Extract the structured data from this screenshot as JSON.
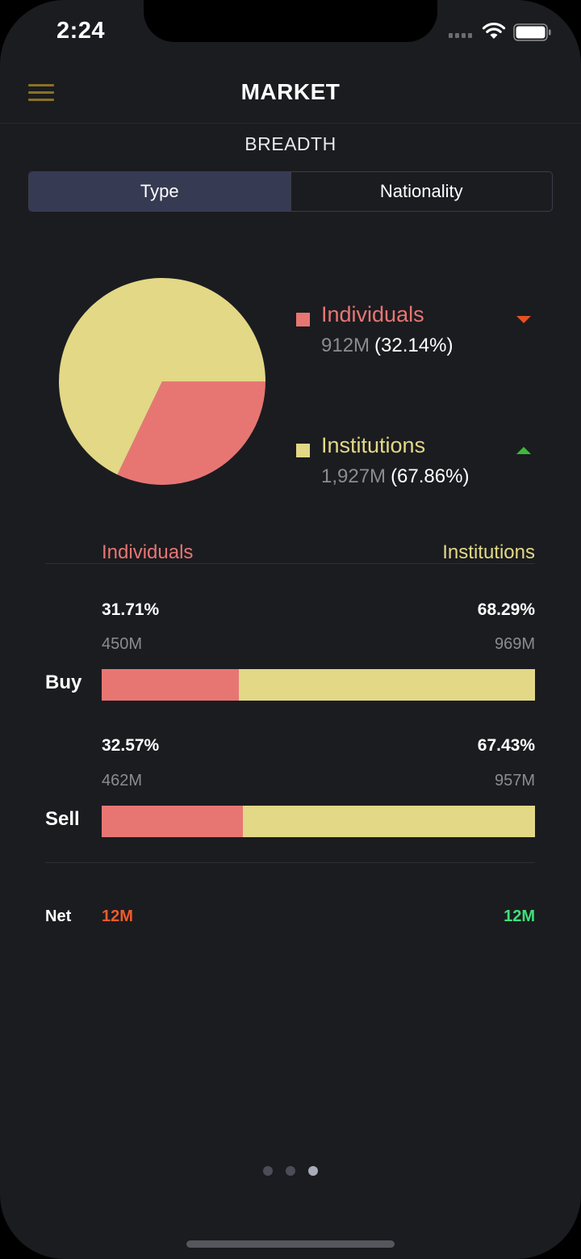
{
  "status_bar": {
    "time": "2:24"
  },
  "header": {
    "title": "MARKET",
    "menu_icon": "hamburger-menu-icon"
  },
  "section": {
    "subtitle": "BREADTH"
  },
  "tabs": [
    {
      "label": "Type",
      "active": true
    },
    {
      "label": "Nationality",
      "active": false
    }
  ],
  "colors": {
    "individuals": "#e77673",
    "institutions": "#e2d886",
    "down": "#e8501f",
    "up": "#3db93a",
    "net_negative": "#f05a2a",
    "net_positive": "#3ee07a",
    "accent_menu": "#8a7125"
  },
  "chart_data": {
    "type": "pie",
    "slices": [
      {
        "label": "Individuals",
        "value": 32.14,
        "amount": "912M",
        "percent_label": "(32.14%)",
        "trend": "down"
      },
      {
        "label": "Institutions",
        "value": 67.86,
        "amount": "1,927M",
        "percent_label": "(67.86%)",
        "trend": "up"
      }
    ]
  },
  "breakdown": {
    "left_header": "Individuals",
    "right_header": "Institutions",
    "rows": [
      {
        "label": "Buy",
        "left_pct": "31.71%",
        "left_amount": "450M",
        "right_pct": "68.29%",
        "right_amount": "969M",
        "left_share": 31.71
      },
      {
        "label": "Sell",
        "left_pct": "32.57%",
        "left_amount": "462M",
        "right_pct": "67.43%",
        "right_amount": "957M",
        "left_share": 32.57
      }
    ],
    "net": {
      "label": "Net",
      "left_value": "12M",
      "right_value": "12M"
    }
  },
  "pager": {
    "count": 3,
    "active_index": 2
  }
}
